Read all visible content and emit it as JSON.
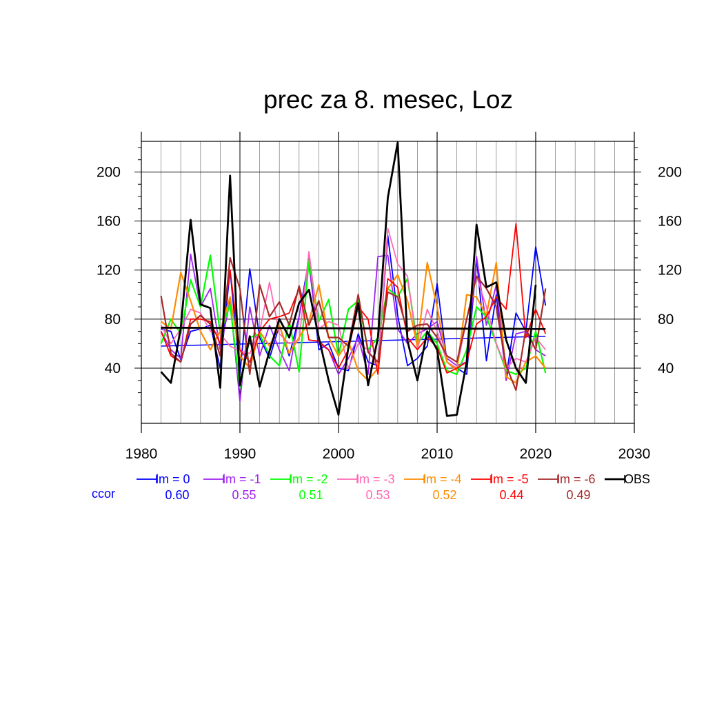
{
  "chart_data": {
    "type": "line",
    "title": "prec za 8. mesec, Loz",
    "xlim": [
      1980,
      2030
    ],
    "ylim": [
      -5,
      225
    ],
    "x_ticks": [
      1980,
      1990,
      2000,
      2010,
      2020,
      2030
    ],
    "x_tick_labels": [
      "1980",
      "1990",
      "2000",
      "2010",
      "2020",
      "2030"
    ],
    "y_ticks": [
      40,
      80,
      120,
      160,
      200
    ],
    "y_tick_labels": [
      "40",
      "80",
      "120",
      "160",
      "200"
    ],
    "grid": true,
    "x_grid_minor_step": 2,
    "legend_position": "bottom",
    "ccor_label": "ccor",
    "x": [
      1982,
      1983,
      1984,
      1985,
      1986,
      1987,
      1988,
      1989,
      1990,
      1991,
      1992,
      1993,
      1994,
      1995,
      1996,
      1997,
      1998,
      1999,
      2000,
      2001,
      2002,
      2003,
      2004,
      2005,
      2006,
      2007,
      2008,
      2009,
      2010,
      2011,
      2012,
      2013,
      2014,
      2015,
      2016,
      2017,
      2018,
      2019,
      2020,
      2021
    ],
    "series": [
      {
        "name": "lm = 0",
        "ccor": "0.60",
        "color": "#0000ff",
        "width": 1.8,
        "values": [
          72,
          70,
          47,
          70,
          72,
          75,
          40,
          120,
          35,
          121,
          65,
          48,
          75,
          50,
          82,
          129,
          55,
          60,
          40,
          38,
          68,
          45,
          42,
          148,
          83,
          42,
          48,
          58,
          109,
          45,
          40,
          35,
          130,
          46,
          100,
          33,
          85,
          70,
          139,
          91
        ],
        "trend": [
          58,
          66
        ]
      },
      {
        "name": "lm = -1",
        "ccor": "0.55",
        "color": "#a020f0",
        "width": 1.8,
        "values": [
          70,
          55,
          48,
          133,
          90,
          105,
          55,
          95,
          13,
          90,
          50,
          75,
          55,
          38,
          82,
          125,
          60,
          55,
          35,
          48,
          65,
          35,
          131,
          132,
          72,
          60,
          68,
          72,
          78,
          48,
          42,
          45,
          131,
          75,
          108,
          30,
          68,
          70,
          55,
          50
        ]
      },
      {
        "name": "lm = -2",
        "ccor": "0.51",
        "color": "#00ff00",
        "width": 2.2,
        "values": [
          60,
          80,
          68,
          112,
          90,
          132,
          68,
          92,
          24,
          65,
          68,
          50,
          42,
          78,
          37,
          128,
          78,
          96,
          50,
          88,
          95,
          55,
          65,
          105,
          98,
          113,
          60,
          70,
          60,
          38,
          35,
          55,
          90,
          82,
          60,
          38,
          35,
          40,
          70,
          36
        ]
      },
      {
        "name": "lm = -3",
        "ccor": "0.53",
        "color": "#ff69b4",
        "width": 1.8,
        "values": [
          75,
          60,
          72,
          88,
          85,
          70,
          68,
          58,
          54,
          52,
          70,
          110,
          68,
          60,
          63,
          135,
          72,
          78,
          75,
          40,
          60,
          55,
          40,
          154,
          125,
          115,
          55,
          88,
          70,
          45,
          40,
          80,
          115,
          90,
          60,
          40,
          48,
          45,
          65,
          55
        ]
      },
      {
        "name": "lm = -4",
        "ccor": "0.52",
        "color": "#ff8c00",
        "width": 2.2,
        "values": [
          78,
          72,
          118,
          95,
          70,
          55,
          70,
          98,
          50,
          40,
          70,
          58,
          75,
          52,
          65,
          78,
          108,
          65,
          50,
          62,
          38,
          30,
          40,
          105,
          116,
          95,
          58,
          126,
          90,
          45,
          38,
          100,
          98,
          83,
          126,
          33,
          28,
          45,
          50,
          40
        ]
      },
      {
        "name": "lm = -5",
        "ccor": "0.44",
        "color": "#ff0000",
        "width": 1.8,
        "values": [
          70,
          50,
          45,
          80,
          80,
          78,
          60,
          120,
          55,
          45,
          70,
          80,
          82,
          85,
          105,
          63,
          62,
          55,
          40,
          55,
          90,
          80,
          35,
          113,
          106,
          65,
          55,
          65,
          57,
          36,
          40,
          45,
          76,
          82,
          98,
          88,
          158,
          65,
          88,
          68
        ]
      },
      {
        "name": "lm = -6",
        "ccor": "0.49",
        "color": "#a52a2a",
        "width": 2.2,
        "values": [
          99,
          52,
          45,
          76,
          83,
          76,
          50,
          130,
          105,
          35,
          108,
          82,
          94,
          75,
          107,
          75,
          95,
          65,
          65,
          58,
          100,
          53,
          45,
          102,
          98,
          70,
          75,
          76,
          65,
          50,
          45,
          80,
          115,
          105,
          90,
          42,
          22,
          72,
          55,
          105
        ]
      },
      {
        "name": "OBS",
        "ccor": "",
        "color": "#000000",
        "width": 2.8,
        "values": [
          37,
          28,
          73,
          161,
          92,
          89,
          24,
          197,
          26,
          66,
          25,
          54,
          80,
          65,
          93,
          104,
          65,
          30,
          2,
          57,
          93,
          26,
          65,
          179,
          224,
          62,
          30,
          70,
          55,
          1,
          2,
          45,
          157,
          106,
          110,
          63,
          40,
          28,
          108,
          null
        ],
        "trend": [
          73,
          72
        ]
      }
    ]
  }
}
